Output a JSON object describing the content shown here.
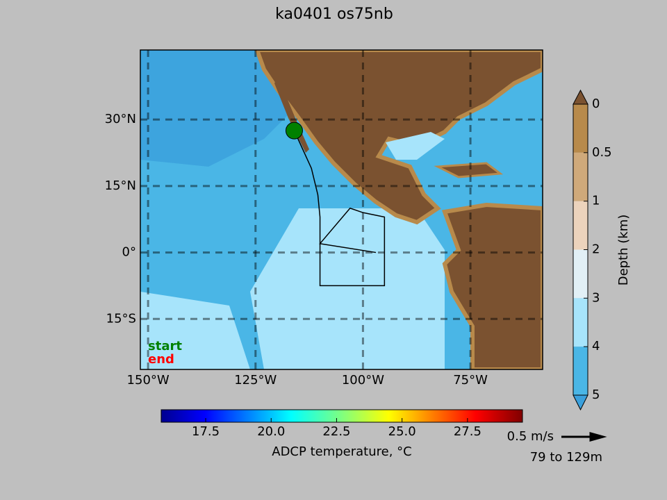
{
  "chart_data": {
    "type": "map",
    "title": "ka0401 os75nb",
    "xlim": [
      -151.8,
      -58.2
    ],
    "ylim": [
      -26.4,
      45.7
    ],
    "xticks": [
      {
        "value": -150,
        "label": "150°W"
      },
      {
        "value": -125,
        "label": "125°W"
      },
      {
        "value": -100,
        "label": "100°W"
      },
      {
        "value": -75,
        "label": "75°W"
      }
    ],
    "yticks": [
      {
        "value": 30,
        "label": "30°N"
      },
      {
        "value": 15,
        "label": "15°N"
      },
      {
        "value": 0,
        "label": "0°"
      },
      {
        "value": -15,
        "label": "15°S"
      }
    ],
    "grid": true,
    "track": {
      "color": "#000000",
      "lon": [
        -116,
        -112,
        -110.5,
        -110,
        -110,
        -110,
        -102,
        -95,
        -95,
        -95,
        -100,
        -103,
        -110,
        -97
      ],
      "lat": [
        27.5,
        19,
        13,
        8,
        0,
        -7.5,
        -7.5,
        -7.5,
        0,
        8,
        9,
        10,
        2,
        0
      ]
    },
    "start": {
      "label": "start",
      "color": "#008000"
    },
    "end": {
      "label": "end",
      "color": "#ff0000"
    },
    "depth_colorbar": {
      "label": "Depth (km)",
      "ticks": [
        0,
        0.5,
        1,
        2,
        3,
        4,
        5
      ],
      "colors": [
        "#b88a4b",
        "#cfa97a",
        "#ecd3bc",
        "#e2f0f6",
        "#a7e4fb",
        "#4ab6e6"
      ]
    },
    "temperature_colorbar": {
      "label": "ADCP temperature, °C",
      "xlim": [
        15.8,
        29.6
      ],
      "xticks": [
        17.5,
        {
          "value": 20,
          "label": "20.0"
        },
        22.5,
        {
          "value": 25,
          "label": "25.0"
        },
        27.5
      ]
    },
    "scale_arrow": {
      "label": "0.5 m/s"
    },
    "depth_range": "79 to 129m"
  }
}
